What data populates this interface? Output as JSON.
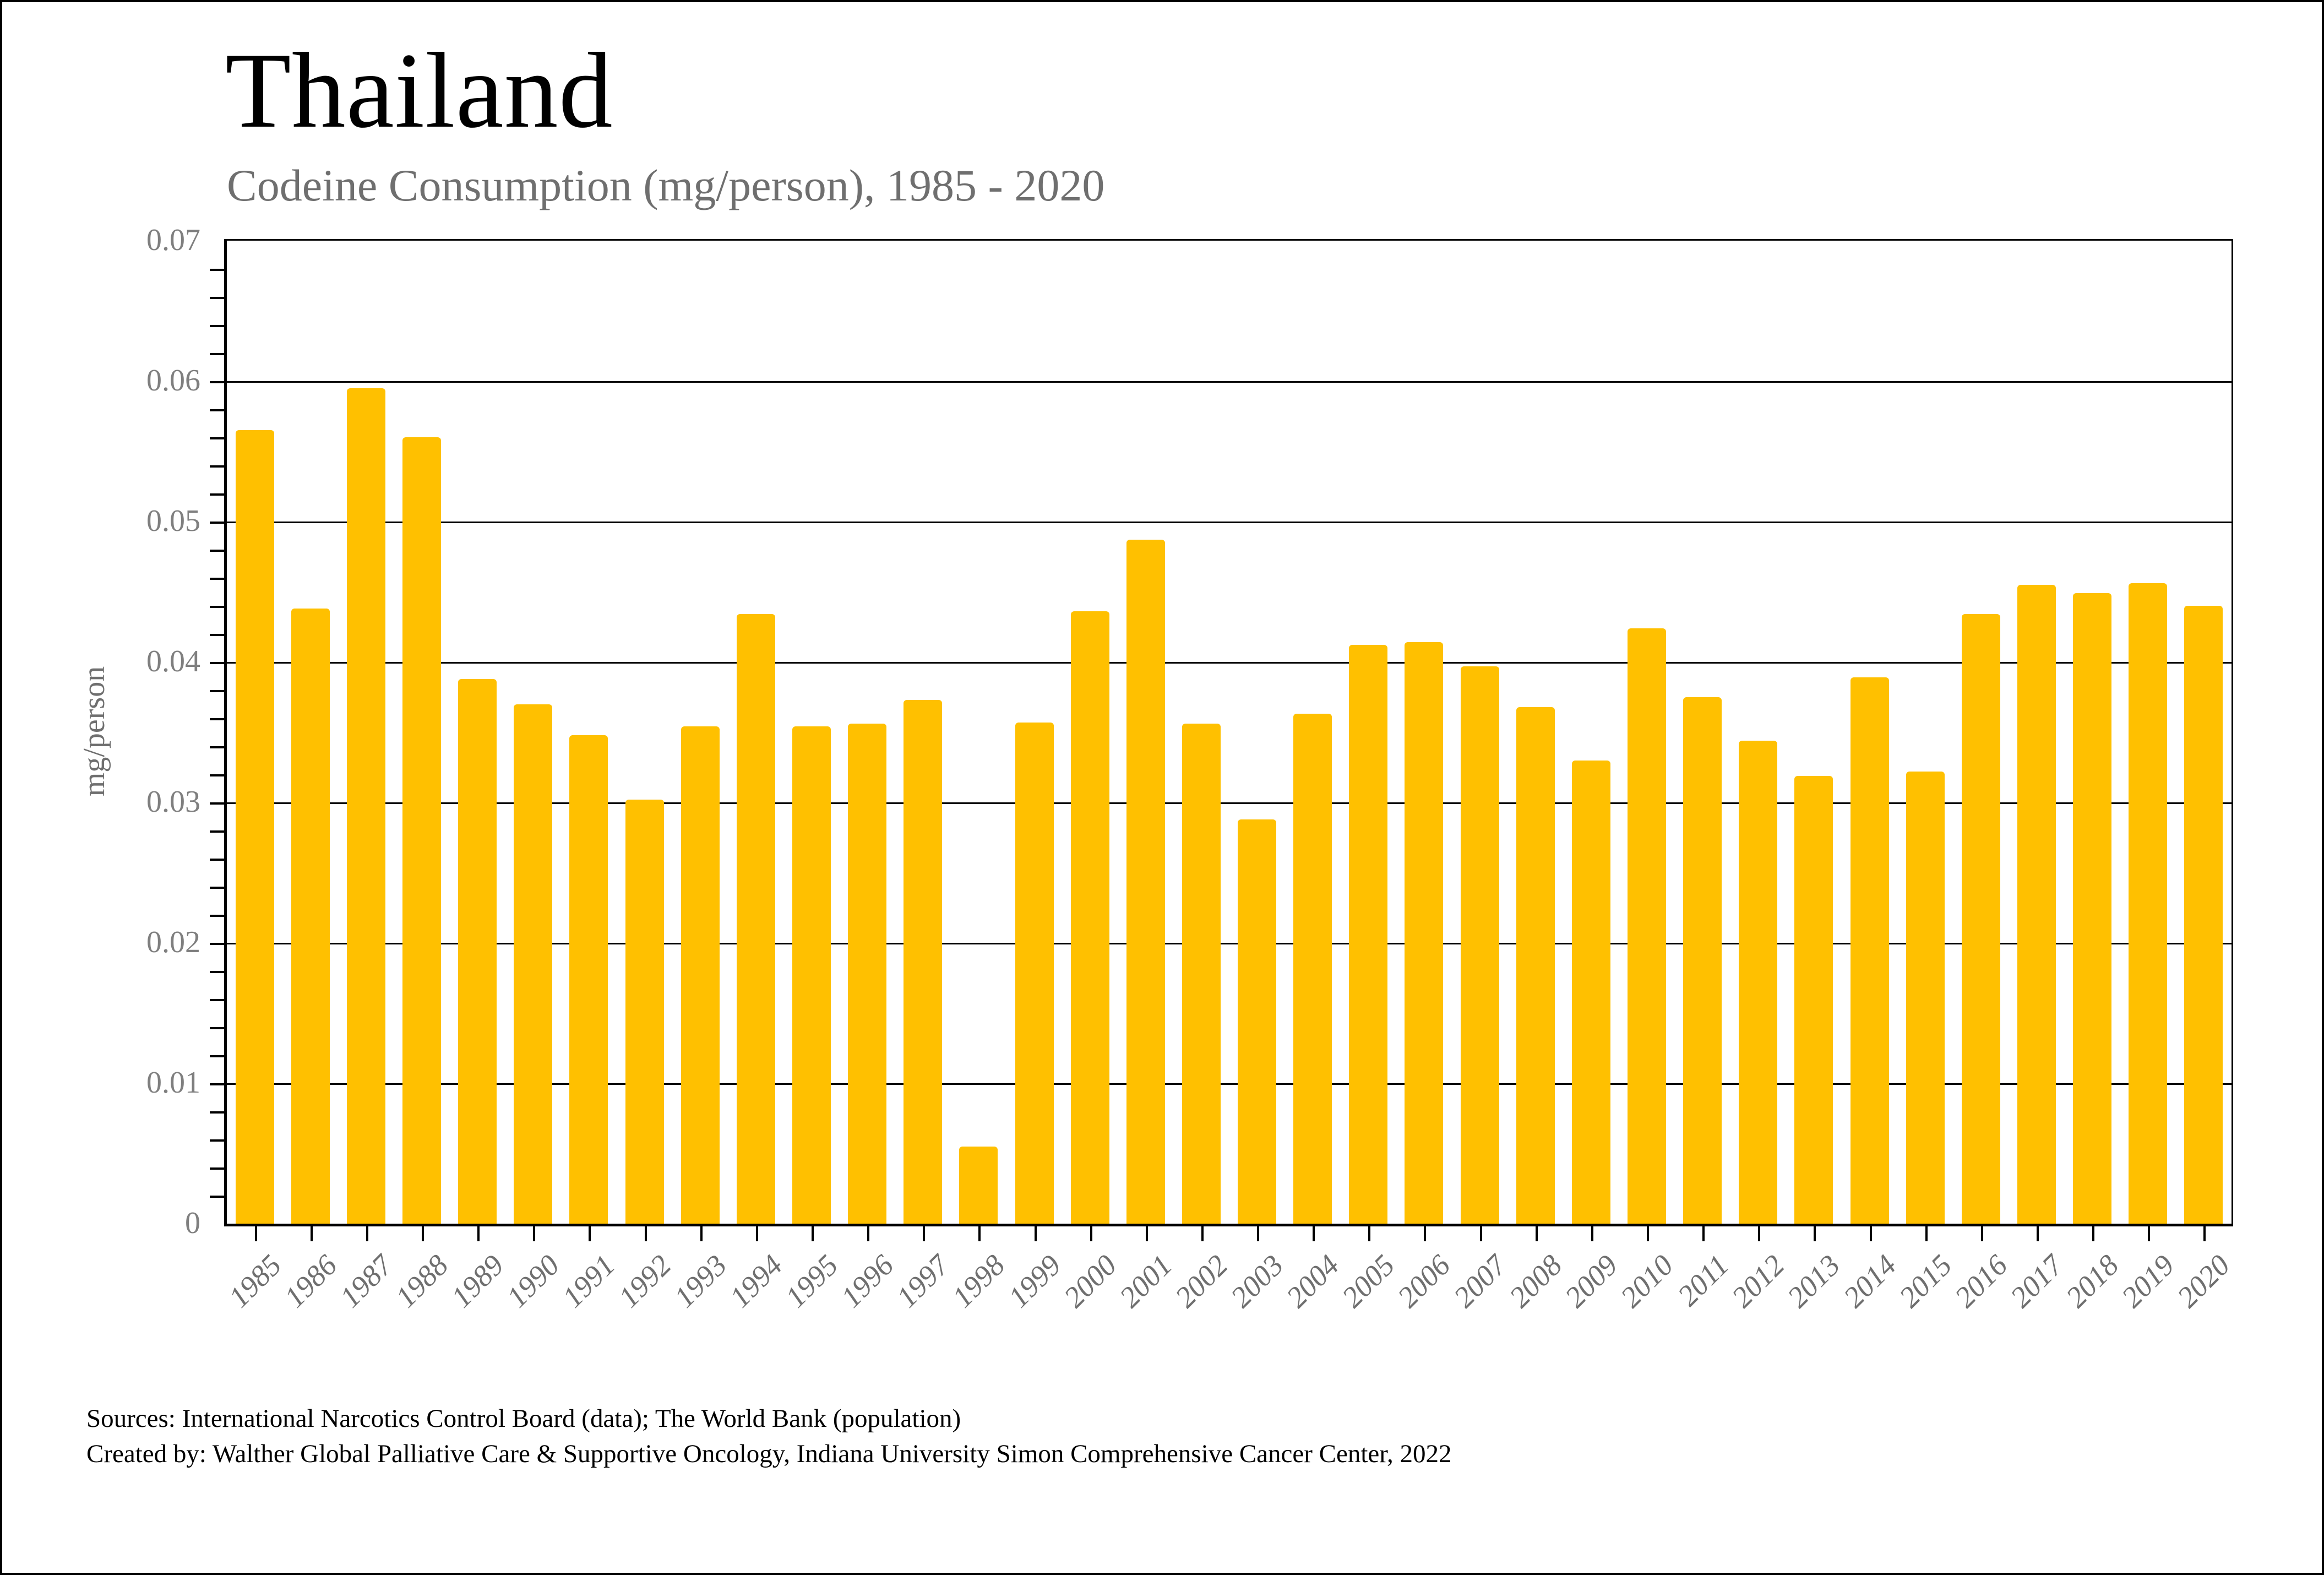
{
  "page": {
    "background": "#ffffff",
    "frame_color": "#000000"
  },
  "header": {
    "title": "Thailand",
    "subtitle": "Codeine Consumption (mg/person), 1985 - 2020"
  },
  "chart_data": {
    "type": "bar",
    "title": "Thailand",
    "subtitle": "Codeine Consumption (mg/person), 1985 - 2020",
    "xlabel": "",
    "ylabel": "mg/person",
    "ylim": [
      0,
      0.07
    ],
    "ytick_step": 0.01,
    "ytick_labels": [
      "0",
      "0.01",
      "0.02",
      "0.03",
      "0.04",
      "0.05",
      "0.06",
      "0.07"
    ],
    "minor_tick_step": 0.002,
    "grid": true,
    "legend": "none",
    "bar_color": "#FFC000",
    "categories": [
      1985,
      1986,
      1987,
      1988,
      1989,
      1990,
      1991,
      1992,
      1993,
      1994,
      1995,
      1996,
      1997,
      1998,
      1999,
      2000,
      2001,
      2002,
      2003,
      2004,
      2005,
      2006,
      2007,
      2008,
      2009,
      2010,
      2011,
      2012,
      2013,
      2014,
      2015,
      2016,
      2017,
      2018,
      2019,
      2020
    ],
    "values": [
      0.0565,
      0.0438,
      0.0595,
      0.056,
      0.0388,
      0.037,
      0.0348,
      0.0302,
      0.0354,
      0.0434,
      0.0354,
      0.0356,
      0.0373,
      0.0055,
      0.0357,
      0.0436,
      0.0487,
      0.0356,
      0.0288,
      0.0363,
      0.0412,
      0.0414,
      0.0397,
      0.0368,
      0.033,
      0.0424,
      0.0375,
      0.0344,
      0.0319,
      0.0389,
      0.0322,
      0.0434,
      0.0455,
      0.0449,
      0.0456,
      0.044
    ]
  },
  "footer": {
    "source_line1": "Sources: International Narcotics Control Board (data); The World Bank (population)",
    "source_line2": "Created by: Walther Global Palliative Care & Supportive Oncology, Indiana University Simon Comprehensive Cancer Center, 2022"
  }
}
